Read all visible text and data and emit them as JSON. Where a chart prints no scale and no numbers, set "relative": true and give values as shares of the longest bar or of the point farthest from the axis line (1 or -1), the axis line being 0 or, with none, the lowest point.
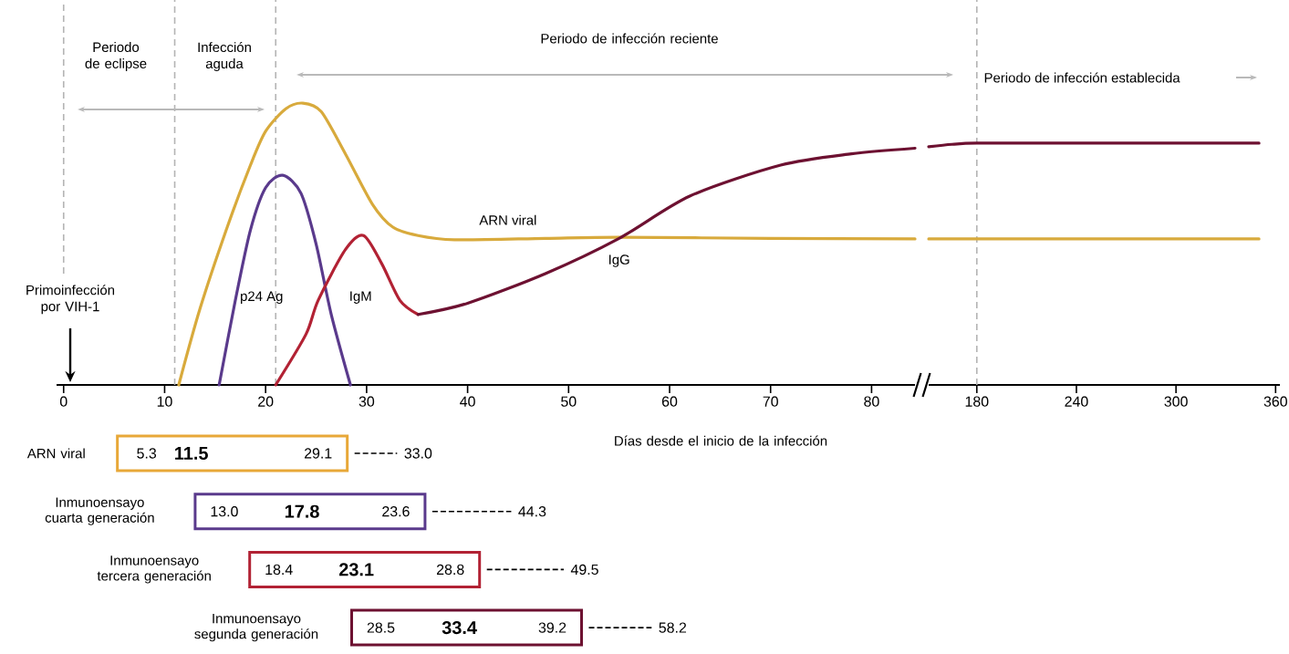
{
  "chart_data": [
    {
      "type": "line",
      "relative": true,
      "marker": "none",
      "line_style": "solid",
      "xlabel": "Días desde el inicio de la infección",
      "xlim": [
        -0.7,
        84.3
      ],
      "xticks": [
        0,
        10,
        20,
        30,
        40,
        50,
        60,
        70,
        80
      ],
      "series": [
        {
          "name": "ARN viral",
          "color": "#d8aa3c",
          "x": [
            11.4,
            13.5,
            16.2,
            18.5,
            20,
            22,
            23.7,
            25.5,
            27.9,
            30.6,
            32.6,
            35.1,
            38.7,
            47.7,
            55,
            70,
            84.3
          ],
          "values": [
            0,
            0.27,
            0.56,
            0.78,
            0.9,
            0.98,
            1.0,
            0.97,
            0.82,
            0.64,
            0.56,
            0.53,
            0.515,
            0.52,
            0.524,
            0.52,
            0.518
          ]
        },
        {
          "name": "p24 Ag",
          "color": "#5a3a8c",
          "x": [
            15.4,
            17,
            18.5,
            20,
            21.7,
            23.5,
            25,
            26.5,
            28.4
          ],
          "values": [
            0,
            0.3,
            0.55,
            0.7,
            0.744,
            0.68,
            0.5,
            0.25,
            0
          ]
        },
        {
          "name": "IgM",
          "color": "#b22234",
          "x": [
            21,
            24,
            25.2,
            27.9,
            29.7,
            31.5,
            33.3,
            35.1
          ],
          "values": [
            0,
            0.18,
            0.3,
            0.48,
            0.53,
            0.43,
            0.3,
            0.25
          ]
        },
        {
          "name": "IgG",
          "color": "#6d1131",
          "x": [
            35.1,
            40,
            47.7,
            55,
            62,
            71,
            78,
            84.3
          ],
          "values": [
            0.25,
            0.29,
            0.395,
            0.52,
            0.67,
            0.78,
            0.82,
            0.84
          ]
        }
      ],
      "ref_lines": [
        {
          "axis": "x",
          "value": 0,
          "color": "#b4b4b4",
          "line_style": "dashed"
        },
        {
          "axis": "x",
          "value": 11,
          "color": "#b4b4b4",
          "line_style": "dashed"
        },
        {
          "axis": "x",
          "value": 21,
          "color": "#b4b4b4",
          "line_style": "dashed"
        }
      ],
      "annotations": [
        "Periodo de eclipse",
        "Infección aguda",
        "Periodo de infección reciente",
        "Primoinfección por VIH-1"
      ]
    },
    {
      "type": "line",
      "relative": true,
      "marker": "none",
      "line_style": "solid",
      "xlim": [
        151,
        362.6
      ],
      "xticks": [
        180,
        240,
        300,
        360
      ],
      "series": [
        {
          "color": "#d8aa3c",
          "x": [
            151,
            200,
            250,
            300,
            350
          ],
          "values": [
            0.604,
            0.604,
            0.604,
            0.604,
            0.604
          ]
        },
        {
          "color": "#6d1131",
          "x": [
            151,
            165,
            180,
            220,
            260,
            300,
            350
          ],
          "values": [
            0.985,
            0.995,
            1.0,
            1.0,
            1.0,
            1.0,
            1.0
          ]
        }
      ],
      "ref_lines": [
        {
          "axis": "x",
          "value": 180,
          "color": "#b4b4b4",
          "line_style": "dashed"
        }
      ],
      "annotations": [
        "Periodo de infección establecida"
      ]
    },
    {
      "type": "other",
      "categories": [
        "ARN viral",
        "Inmunoensayo cuarta generación",
        "Inmunoensayo tercera generación",
        "Inmunoensayo segunda generación"
      ],
      "colors": [
        "#e8a838",
        "#5a3a8c",
        "#b22234",
        "#6d1131"
      ],
      "series": [
        {
          "values": [
            5.3,
            13.0,
            18.4,
            28.5
          ],
          "value_labels": [
            "5.3",
            "13.0",
            "18.4",
            "28.5"
          ]
        },
        {
          "values": [
            11.5,
            17.8,
            23.1,
            33.4
          ],
          "value_labels": [
            "11.5",
            "17.8",
            "23.1",
            "33.4"
          ]
        },
        {
          "values": [
            29.1,
            23.6,
            28.8,
            39.2
          ],
          "value_labels": [
            "29.1",
            "23.6",
            "28.8",
            "39.2"
          ]
        },
        {
          "values": [
            33.0,
            44.3,
            49.5,
            58.2
          ],
          "value_labels": [
            "33.0",
            "44.3",
            "49.5",
            "58.2"
          ]
        }
      ]
    }
  ]
}
